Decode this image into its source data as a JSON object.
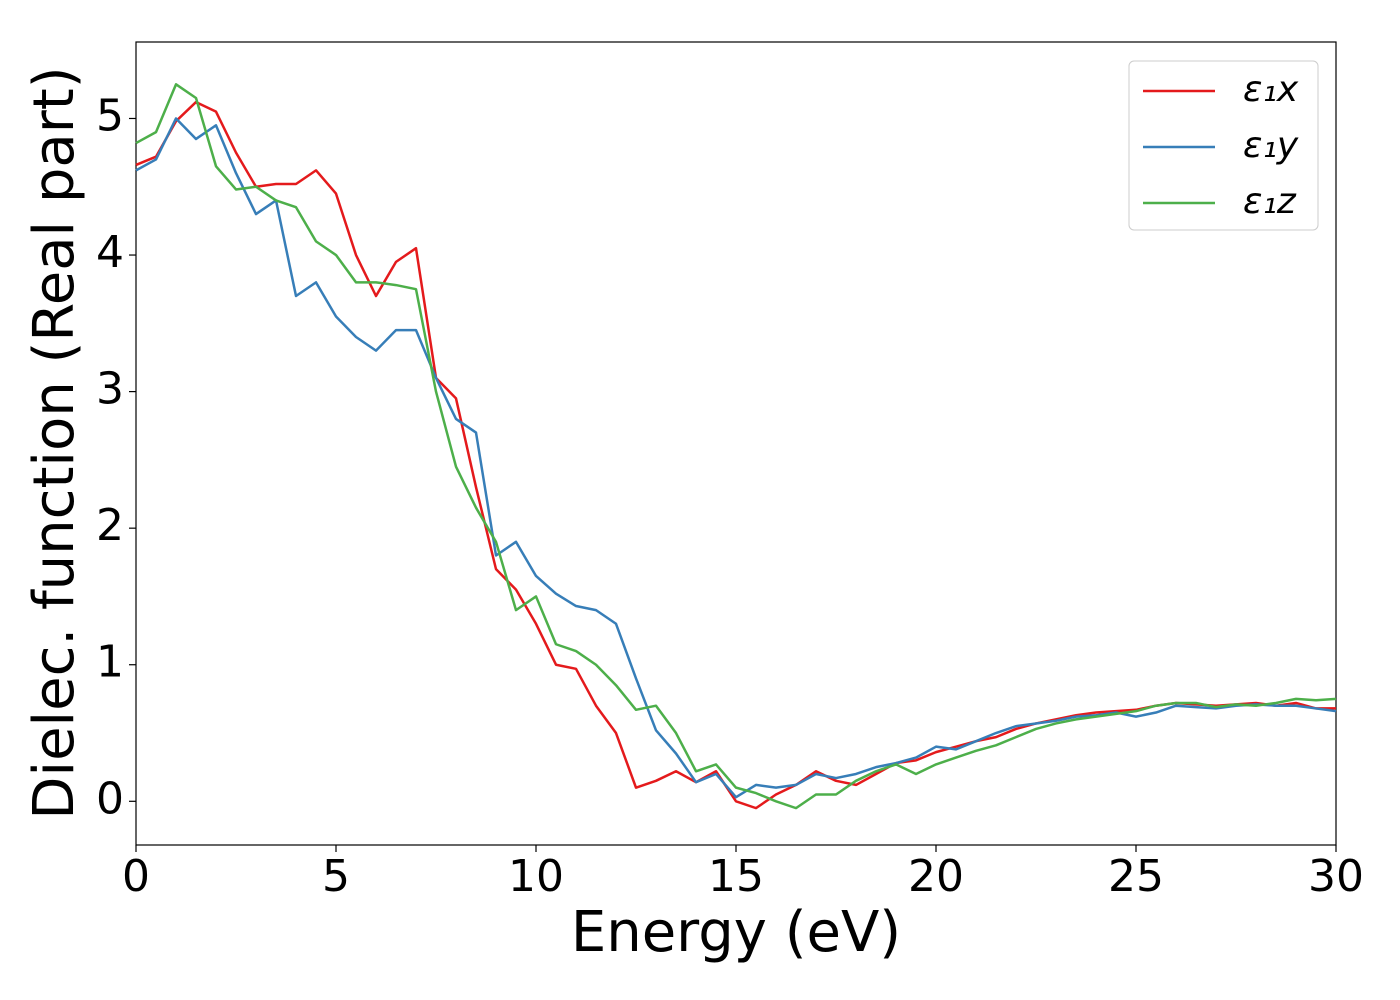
{
  "chart_data": {
    "type": "line",
    "xlabel": "Energy (eV)",
    "ylabel": "Dielec. function (Real part)",
    "x": [
      0,
      0.5,
      1,
      1.5,
      2,
      2.5,
      3,
      3.5,
      4,
      4.5,
      5,
      5.5,
      6,
      6.5,
      7,
      7.5,
      8,
      8.5,
      9,
      9.5,
      10,
      10.5,
      11,
      11.5,
      12,
      12.5,
      13,
      13.5,
      14,
      14.5,
      15,
      15.5,
      16,
      16.5,
      17,
      17.5,
      18,
      18.5,
      19,
      19.5,
      20,
      20.5,
      21,
      21.5,
      22,
      22.5,
      23,
      23.5,
      24,
      24.5,
      25,
      25.5,
      26,
      26.5,
      27,
      27.5,
      28,
      28.5,
      29,
      29.5,
      30
    ],
    "series": [
      {
        "name": "ε₁x",
        "color": "#e41a1c",
        "values": [
          4.66,
          4.72,
          4.98,
          5.12,
          5.05,
          4.75,
          4.5,
          4.52,
          4.52,
          4.62,
          4.45,
          4.0,
          3.7,
          3.95,
          4.05,
          3.1,
          2.95,
          2.3,
          1.7,
          1.55,
          1.3,
          1.0,
          0.97,
          0.7,
          0.5,
          0.1,
          0.15,
          0.22,
          0.14,
          0.22,
          0.0,
          -0.05,
          0.05,
          0.12,
          0.22,
          0.15,
          0.12,
          0.2,
          0.28,
          0.3,
          0.36,
          0.4,
          0.44,
          0.47,
          0.53,
          0.57,
          0.6,
          0.63,
          0.65,
          0.66,
          0.67,
          0.7,
          0.72,
          0.71,
          0.7,
          0.71,
          0.72,
          0.7,
          0.72,
          0.68,
          0.68
        ]
      },
      {
        "name": "ε₁y",
        "color": "#377eb8",
        "values": [
          4.62,
          4.7,
          5.0,
          4.85,
          4.95,
          4.6,
          4.3,
          4.4,
          3.7,
          3.8,
          3.55,
          3.4,
          3.3,
          3.45,
          3.45,
          3.1,
          2.8,
          2.7,
          1.8,
          1.9,
          1.65,
          1.52,
          1.43,
          1.4,
          1.3,
          0.9,
          0.52,
          0.35,
          0.14,
          0.2,
          0.03,
          0.12,
          0.1,
          0.12,
          0.2,
          0.17,
          0.2,
          0.25,
          0.28,
          0.32,
          0.4,
          0.38,
          0.44,
          0.5,
          0.55,
          0.57,
          0.59,
          0.62,
          0.63,
          0.65,
          0.62,
          0.65,
          0.7,
          0.69,
          0.68,
          0.7,
          0.71,
          0.7,
          0.7,
          0.68,
          0.66
        ]
      },
      {
        "name": "ε₁z",
        "color": "#4daf4a",
        "values": [
          4.82,
          4.9,
          5.25,
          5.15,
          4.65,
          4.48,
          4.5,
          4.4,
          4.35,
          4.1,
          4.0,
          3.8,
          3.8,
          3.78,
          3.75,
          3.0,
          2.45,
          2.15,
          1.9,
          1.4,
          1.5,
          1.15,
          1.1,
          1.0,
          0.85,
          0.67,
          0.7,
          0.5,
          0.22,
          0.27,
          0.1,
          0.06,
          0.0,
          -0.05,
          0.05,
          0.05,
          0.15,
          0.22,
          0.27,
          0.2,
          0.27,
          0.32,
          0.37,
          0.41,
          0.47,
          0.53,
          0.57,
          0.6,
          0.62,
          0.64,
          0.66,
          0.7,
          0.72,
          0.72,
          0.69,
          0.71,
          0.7,
          0.72,
          0.75,
          0.74,
          0.75
        ]
      }
    ],
    "xlim": [
      0,
      30
    ],
    "xticks": [
      0,
      5,
      10,
      15,
      20,
      25,
      30
    ],
    "ylim": [
      -0.32,
      5.56
    ],
    "yticks": [
      0,
      1,
      2,
      3,
      4,
      5
    ],
    "legend": "upper right"
  }
}
